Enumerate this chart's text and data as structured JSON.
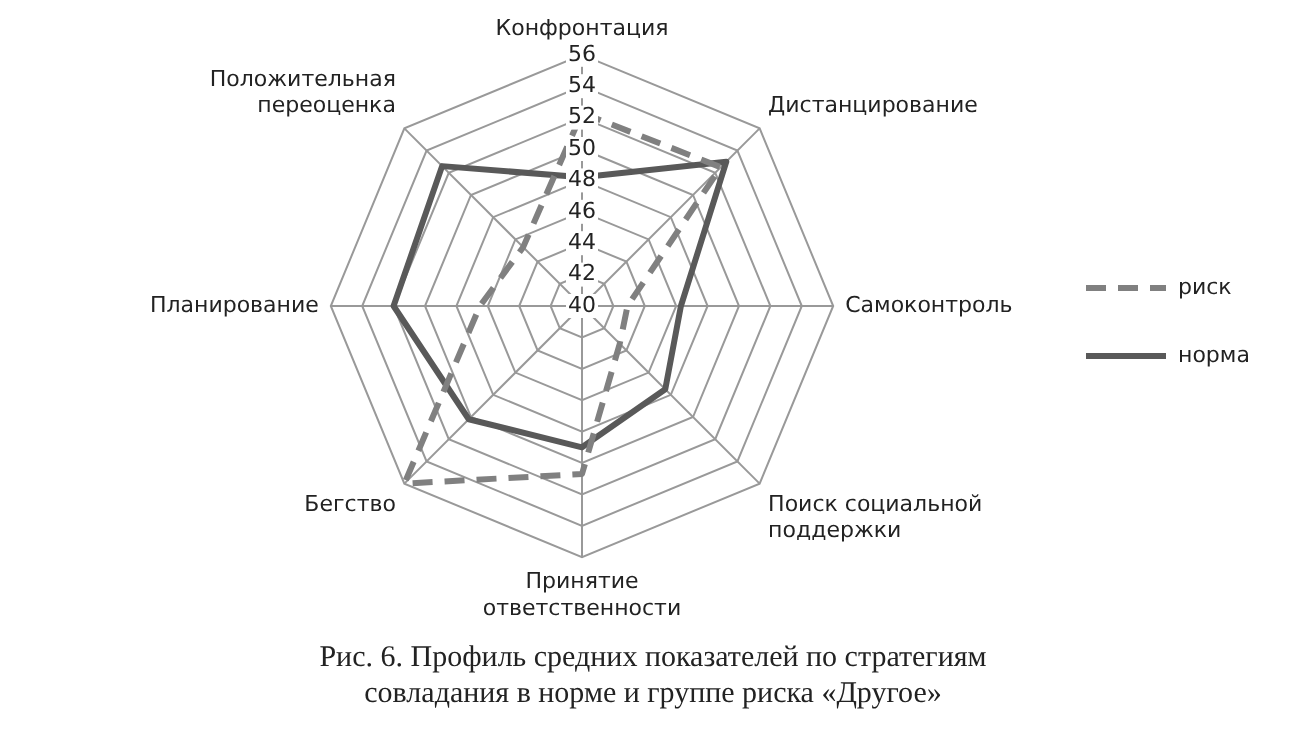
{
  "chart_data": {
    "type": "radar",
    "categories": [
      "Конфронтация",
      "Дистанцирование",
      "Самоконтроль",
      "Поиск социальной поддержки",
      "Принятие ответственности",
      "Бегство",
      "Планирование",
      "Положительная переоценка"
    ],
    "series": [
      {
        "name": "риск",
        "color": "#808080",
        "line_style": "dashed",
        "values": [
          52.3,
          52.5,
          42.9,
          43.4,
          50.7,
          56,
          46.5,
          45.3
        ]
      },
      {
        "name": "норма",
        "color": "#595959",
        "line_style": "solid",
        "values": [
          48.2,
          53,
          46.3,
          47.5,
          49,
          50.2,
          52,
          52.6
        ]
      }
    ],
    "ylim": [
      40,
      56
    ],
    "yticks": [
      40,
      42,
      44,
      46,
      48,
      50,
      52,
      54,
      56
    ],
    "grid": true,
    "legend": "right",
    "marker": "none",
    "annotations": [
      "Рис. 6. Профиль средних показателей по стратегиям совладания в норме и группе риска «Другое»"
    ]
  }
}
